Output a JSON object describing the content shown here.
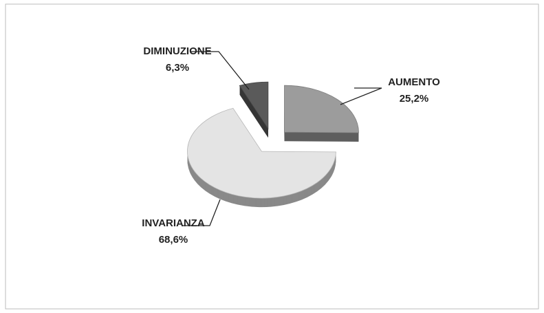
{
  "chart_data": {
    "type": "pie",
    "categories": [
      "AUMENTO",
      "INVARIANZA",
      "DIMINUZIONE"
    ],
    "values": [
      25.2,
      68.6,
      6.3
    ],
    "value_labels": [
      "25,2%",
      "68,6%",
      "6,3%"
    ],
    "colors": [
      "#9c9c9c",
      "#e4e4e4",
      "#5a5a5a"
    ]
  }
}
